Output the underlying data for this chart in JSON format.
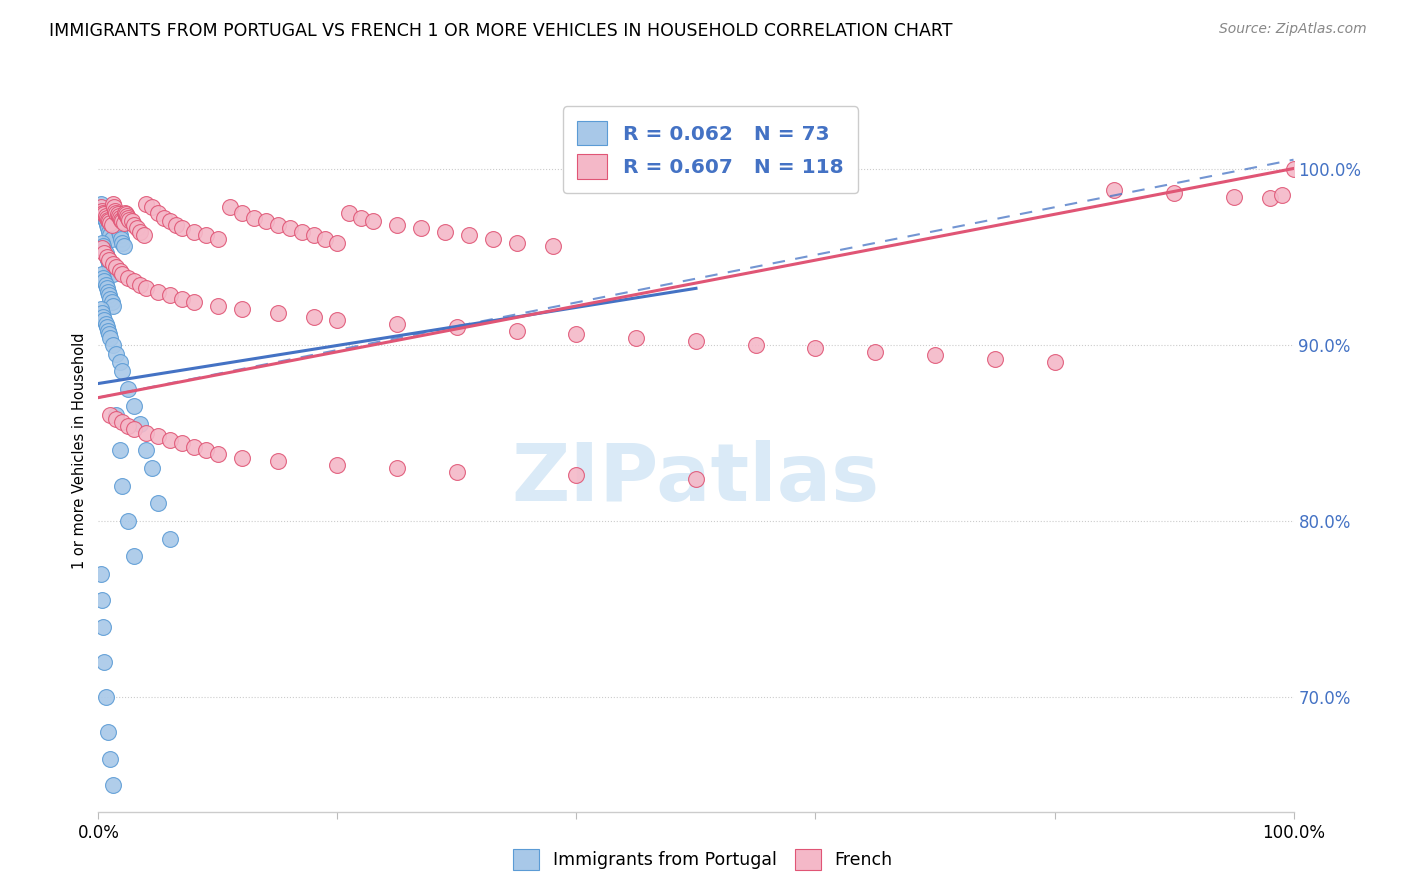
{
  "title": "IMMIGRANTS FROM PORTUGAL VS FRENCH 1 OR MORE VEHICLES IN HOUSEHOLD CORRELATION CHART",
  "source": "Source: ZipAtlas.com",
  "ylabel": "1 or more Vehicles in Household",
  "xlim": [
    0.0,
    1.0
  ],
  "ylim": [
    0.635,
    1.045
  ],
  "ytick_positions": [
    0.7,
    0.8,
    0.9,
    1.0
  ],
  "ytick_labels": [
    "70.0%",
    "80.0%",
    "90.0%",
    "100.0%"
  ],
  "legend_label1": "Immigrants from Portugal",
  "legend_label2": "French",
  "R1": 0.062,
  "N1": 73,
  "R2": 0.607,
  "N2": 118,
  "color1": "#a8c8e8",
  "color1_edge": "#5b9bd5",
  "color2": "#f4b8c8",
  "color2_edge": "#e05575",
  "color1_line": "#4472c4",
  "color2_line": "#e05575",
  "watermark_color": "#daeaf7",
  "background_color": "#ffffff",
  "title_fontsize": 12.5,
  "source_fontsize": 10,
  "portugal_x": [
    0.002,
    0.003,
    0.004,
    0.005,
    0.006,
    0.007,
    0.008,
    0.009,
    0.01,
    0.011,
    0.012,
    0.013,
    0.014,
    0.015,
    0.016,
    0.017,
    0.018,
    0.019,
    0.02,
    0.021,
    0.003,
    0.004,
    0.005,
    0.006,
    0.007,
    0.008,
    0.009,
    0.01,
    0.011,
    0.012,
    0.003,
    0.004,
    0.005,
    0.006,
    0.007,
    0.008,
    0.009,
    0.01,
    0.011,
    0.012,
    0.002,
    0.003,
    0.004,
    0.005,
    0.006,
    0.007,
    0.008,
    0.009,
    0.01,
    0.012,
    0.015,
    0.018,
    0.02,
    0.025,
    0.03,
    0.035,
    0.04,
    0.045,
    0.05,
    0.06,
    0.002,
    0.003,
    0.004,
    0.005,
    0.006,
    0.008,
    0.01,
    0.012,
    0.015,
    0.018,
    0.02,
    0.025,
    0.03
  ],
  "portugal_y": [
    0.98,
    0.976,
    0.974,
    0.972,
    0.97,
    0.968,
    0.966,
    0.964,
    0.962,
    0.96,
    0.975,
    0.972,
    0.97,
    0.968,
    0.966,
    0.964,
    0.962,
    0.96,
    0.958,
    0.956,
    0.958,
    0.956,
    0.954,
    0.952,
    0.95,
    0.948,
    0.946,
    0.944,
    0.942,
    0.94,
    0.94,
    0.938,
    0.936,
    0.934,
    0.932,
    0.93,
    0.928,
    0.926,
    0.924,
    0.922,
    0.92,
    0.918,
    0.916,
    0.914,
    0.912,
    0.91,
    0.908,
    0.906,
    0.904,
    0.9,
    0.895,
    0.89,
    0.885,
    0.875,
    0.865,
    0.855,
    0.84,
    0.83,
    0.81,
    0.79,
    0.77,
    0.755,
    0.74,
    0.72,
    0.7,
    0.68,
    0.665,
    0.65,
    0.86,
    0.84,
    0.82,
    0.8,
    0.78
  ],
  "french_x": [
    0.002,
    0.003,
    0.004,
    0.005,
    0.006,
    0.007,
    0.008,
    0.009,
    0.01,
    0.011,
    0.012,
    0.013,
    0.014,
    0.015,
    0.016,
    0.017,
    0.018,
    0.019,
    0.02,
    0.021,
    0.022,
    0.023,
    0.024,
    0.025,
    0.026,
    0.028,
    0.03,
    0.032,
    0.035,
    0.038,
    0.04,
    0.045,
    0.05,
    0.055,
    0.06,
    0.065,
    0.07,
    0.08,
    0.09,
    0.1,
    0.11,
    0.12,
    0.13,
    0.14,
    0.15,
    0.16,
    0.17,
    0.18,
    0.19,
    0.2,
    0.21,
    0.22,
    0.23,
    0.25,
    0.27,
    0.29,
    0.31,
    0.33,
    0.35,
    0.38,
    0.003,
    0.005,
    0.007,
    0.009,
    0.012,
    0.015,
    0.018,
    0.02,
    0.025,
    0.03,
    0.035,
    0.04,
    0.05,
    0.06,
    0.07,
    0.08,
    0.1,
    0.12,
    0.15,
    0.18,
    0.2,
    0.25,
    0.3,
    0.35,
    0.4,
    0.45,
    0.5,
    0.55,
    0.6,
    0.65,
    0.7,
    0.75,
    0.8,
    0.85,
    0.9,
    0.95,
    0.98,
    0.99,
    0.01,
    0.015,
    0.02,
    0.025,
    0.03,
    0.04,
    0.05,
    0.06,
    0.07,
    0.08,
    0.09,
    0.1,
    0.12,
    0.15,
    0.2,
    0.25,
    0.3,
    0.4,
    0.5,
    1.0
  ],
  "french_y": [
    0.978,
    0.976,
    0.975,
    0.974,
    0.973,
    0.972,
    0.971,
    0.97,
    0.969,
    0.968,
    0.98,
    0.978,
    0.976,
    0.975,
    0.974,
    0.973,
    0.972,
    0.971,
    0.97,
    0.969,
    0.975,
    0.974,
    0.973,
    0.972,
    0.971,
    0.97,
    0.968,
    0.966,
    0.964,
    0.962,
    0.98,
    0.978,
    0.975,
    0.972,
    0.97,
    0.968,
    0.966,
    0.964,
    0.962,
    0.96,
    0.978,
    0.975,
    0.972,
    0.97,
    0.968,
    0.966,
    0.964,
    0.962,
    0.96,
    0.958,
    0.975,
    0.972,
    0.97,
    0.968,
    0.966,
    0.964,
    0.962,
    0.96,
    0.958,
    0.956,
    0.955,
    0.952,
    0.95,
    0.948,
    0.946,
    0.944,
    0.942,
    0.94,
    0.938,
    0.936,
    0.934,
    0.932,
    0.93,
    0.928,
    0.926,
    0.924,
    0.922,
    0.92,
    0.918,
    0.916,
    0.914,
    0.912,
    0.91,
    0.908,
    0.906,
    0.904,
    0.902,
    0.9,
    0.898,
    0.896,
    0.894,
    0.892,
    0.89,
    0.988,
    0.986,
    0.984,
    0.983,
    0.985,
    0.86,
    0.858,
    0.856,
    0.854,
    0.852,
    0.85,
    0.848,
    0.846,
    0.844,
    0.842,
    0.84,
    0.838,
    0.836,
    0.834,
    0.832,
    0.83,
    0.828,
    0.826,
    0.824,
    1.0
  ],
  "blue_line_x0": 0.0,
  "blue_line_y0": 0.878,
  "blue_line_x1": 0.5,
  "blue_line_y1": 0.932,
  "pink_line_x0": 0.0,
  "pink_line_y0": 0.87,
  "pink_line_x1": 1.0,
  "pink_line_y1": 1.0,
  "dash_line_x0": 0.0,
  "dash_line_y0": 0.87,
  "dash_line_x1": 1.0,
  "dash_line_y1": 1.005
}
